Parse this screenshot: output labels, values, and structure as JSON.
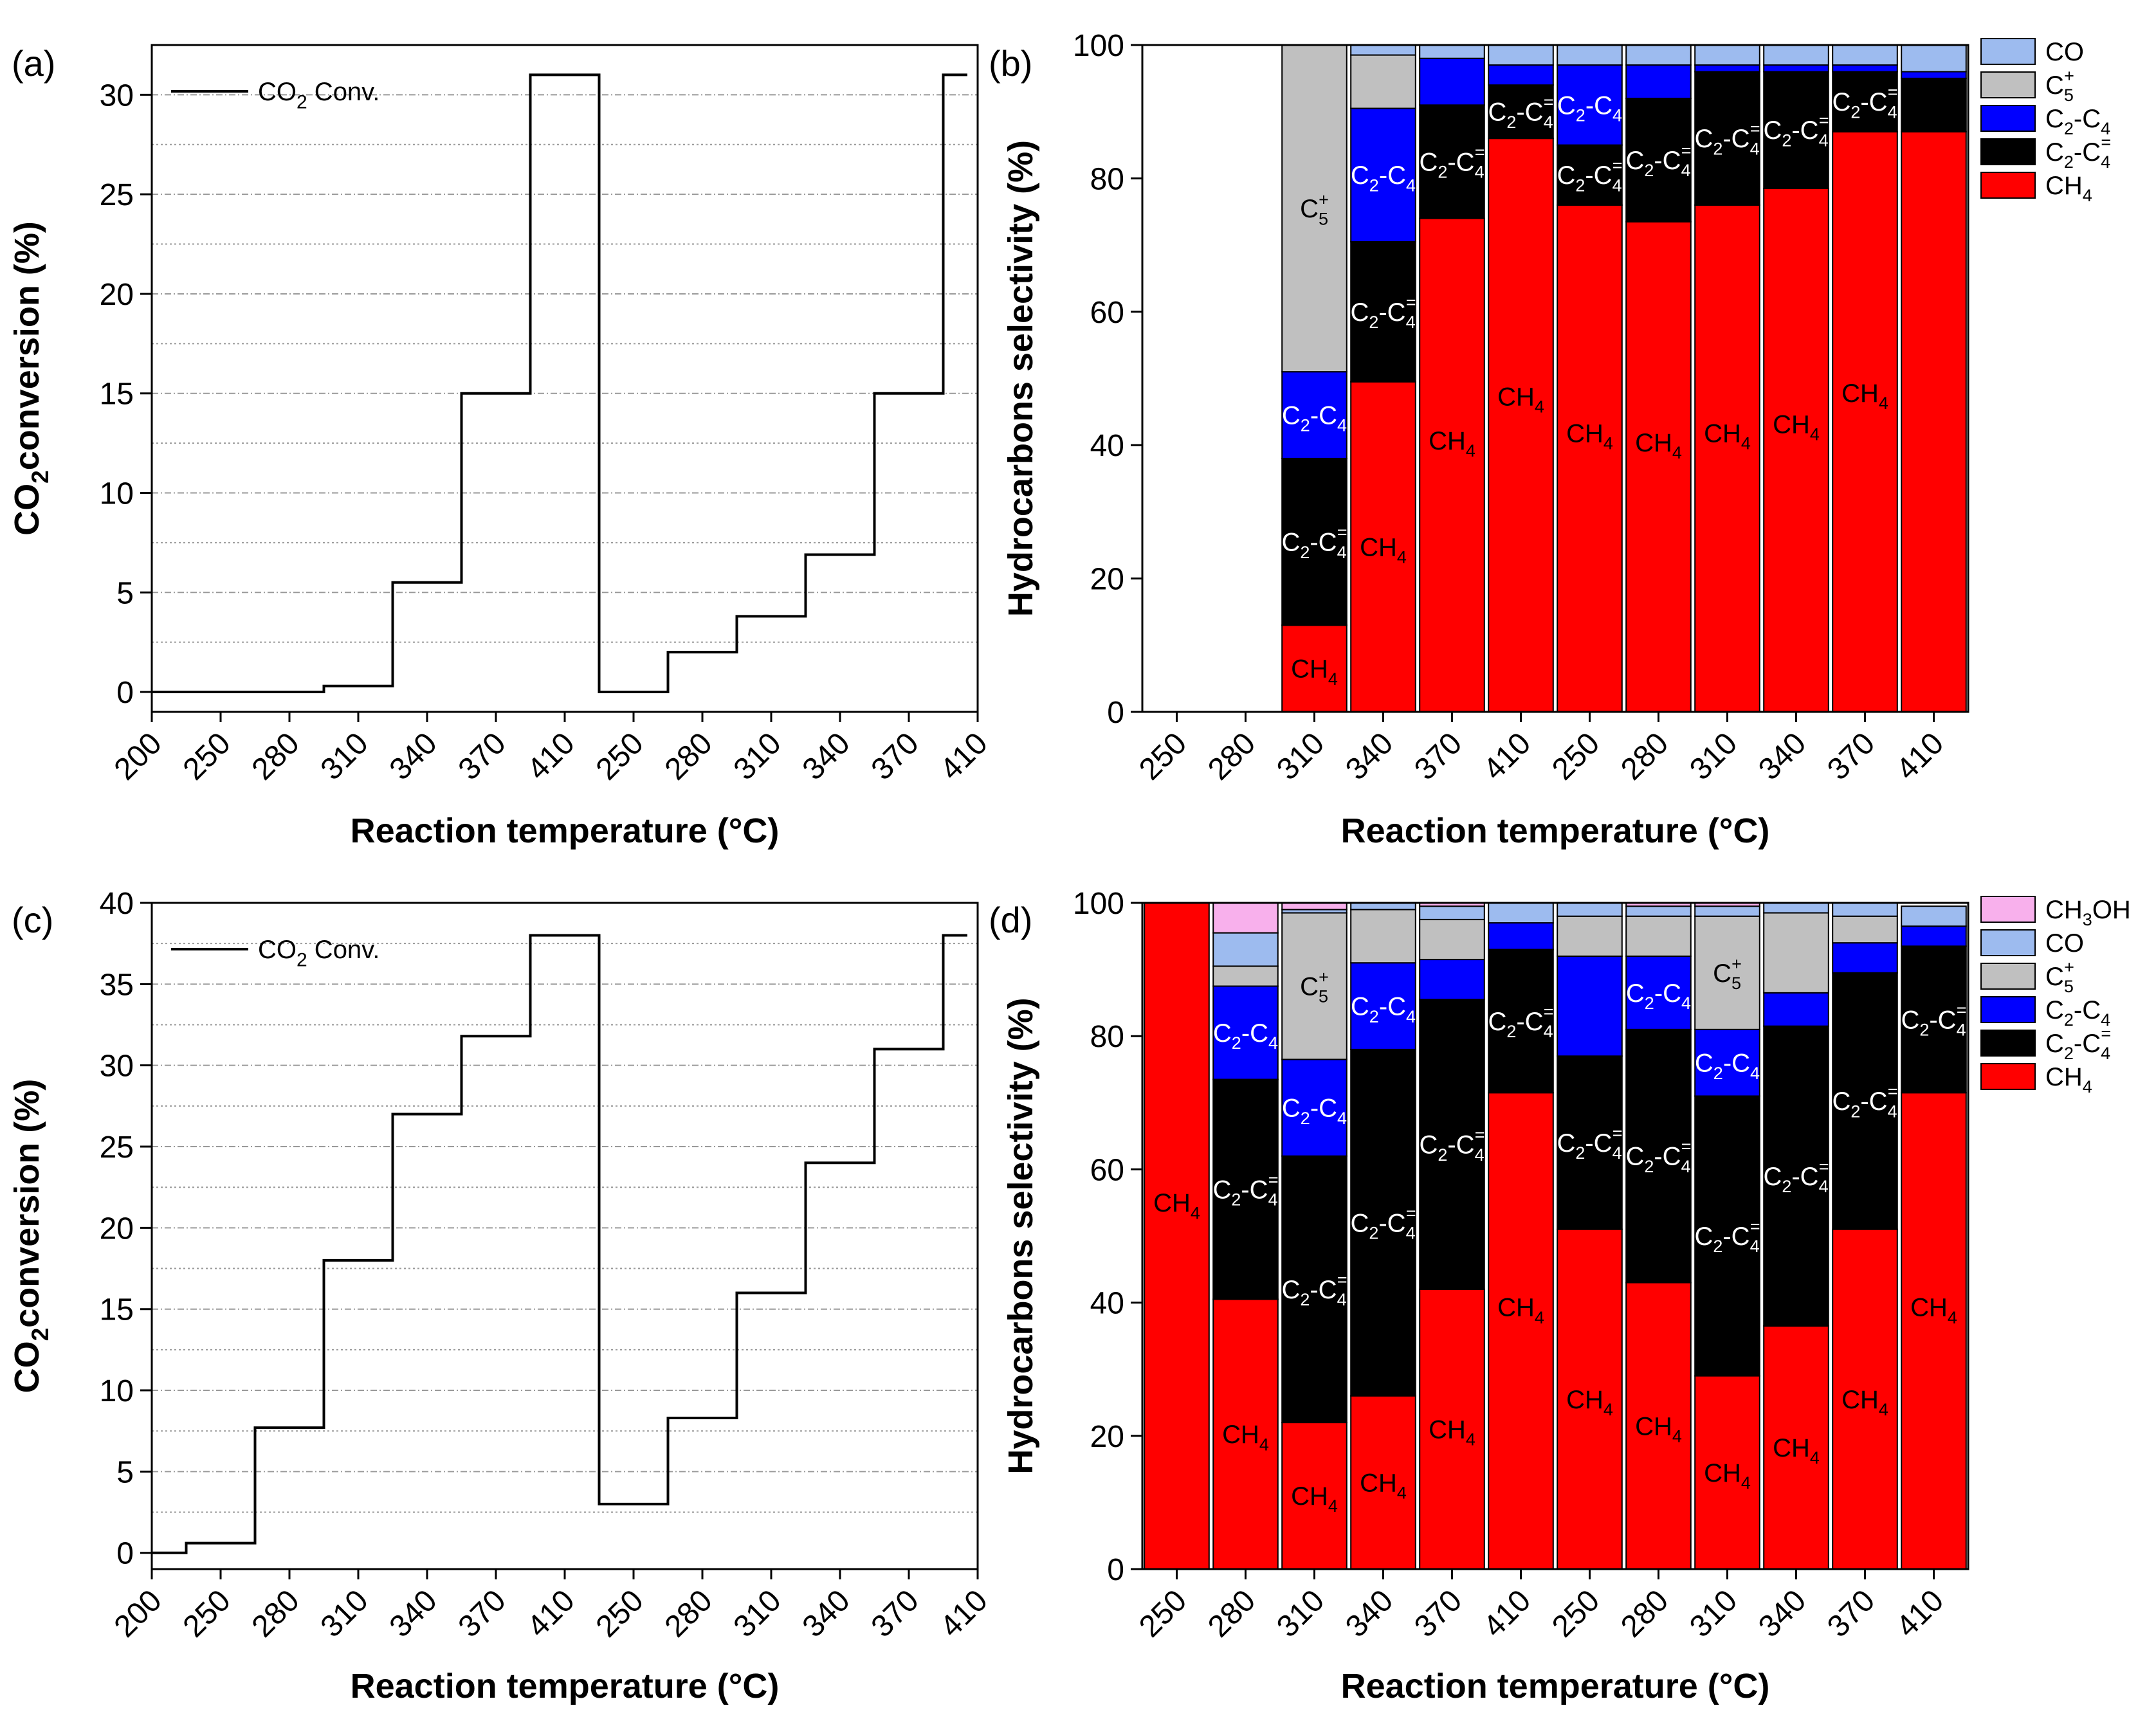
{
  "figure": {
    "panels": [
      "(a)",
      "(b)",
      "(c)",
      "(d)"
    ]
  },
  "chart_data": [
    {
      "id": "a",
      "panel": "(a)",
      "type": "line",
      "step": true,
      "title": "",
      "xlabel": "Reaction temperature (°C)",
      "ylabel": "CO2 conversion (%)",
      "ylabel_parts": [
        "CO",
        "2",
        "conversion (%)"
      ],
      "categories": [
        "200",
        "250",
        "280",
        "310",
        "340",
        "370",
        "410",
        "250",
        "280",
        "310",
        "340",
        "370",
        "410"
      ],
      "ylim": [
        -1,
        32.5
      ],
      "yticks": [
        0,
        5,
        10,
        15,
        20,
        25,
        30
      ],
      "gridlines": [
        2.5,
        5,
        7.5,
        10,
        12.5,
        15,
        17.5,
        20,
        22.5,
        25,
        27.5,
        30
      ],
      "legend": {
        "label_parts": [
          "CO",
          "2",
          " Conv."
        ],
        "position": "top-left"
      },
      "series": [
        {
          "name": "CO2 Conv.",
          "values": [
            0,
            0,
            0,
            0.3,
            5.5,
            15,
            31,
            0,
            2,
            3.8,
            6.9,
            15,
            31
          ]
        }
      ]
    },
    {
      "id": "b",
      "panel": "(b)",
      "type": "bar",
      "stacked": true,
      "xlabel": "Reaction temperature (°C)",
      "ylabel": "Hydrocarbons selectivity (%)",
      "categories": [
        "250",
        "280",
        "310",
        "340",
        "370",
        "410",
        "250",
        "280",
        "310",
        "340",
        "370",
        "410"
      ],
      "ylim": [
        0,
        100
      ],
      "yticks": [
        0,
        20,
        40,
        60,
        80,
        100
      ],
      "legend_order": [
        "CO",
        "C5+",
        "C2-C4",
        "C2-C4=",
        "CH4"
      ],
      "series": [
        {
          "name": "CH4",
          "color": "#ff0000",
          "values": [
            0,
            0,
            13,
            49.5,
            74,
            86,
            76,
            73.5,
            76,
            78.5,
            87,
            null
          ]
        },
        {
          "name": "C2-C4=",
          "color": "#000000",
          "values": [
            0,
            0,
            25,
            21,
            17,
            8,
            9,
            18.5,
            20,
            17.5,
            9,
            null
          ]
        },
        {
          "name": "C2-C4",
          "color": "#0000ff",
          "values": [
            0,
            0,
            13,
            20,
            7,
            3,
            12,
            5,
            1,
            1,
            1,
            null
          ]
        },
        {
          "name": "C5+",
          "color": "#c0c0c0",
          "values": [
            0,
            0,
            49,
            8,
            0,
            0,
            0,
            0,
            0,
            0,
            0,
            null
          ]
        },
        {
          "name": "CO",
          "color": "#9dbbef",
          "values": [
            0,
            0,
            0,
            1.5,
            2,
            3,
            3,
            3,
            3,
            3,
            3,
            null
          ]
        }
      ],
      "bar_labels": [
        {
          "bar": 2,
          "series": "CH4",
          "text": [
            "CH",
            "4",
            ""
          ],
          "white": false
        },
        {
          "bar": 2,
          "series": "C2-C4=",
          "text": [
            "C",
            "2",
            "-C",
            "4",
            "="
          ],
          "white": true
        },
        {
          "bar": 2,
          "series": "C2-C4",
          "text": [
            "C",
            "2",
            "-C",
            "4"
          ],
          "white": true
        },
        {
          "bar": 2,
          "series": "C5+",
          "text": [
            "C",
            "5",
            "+"
          ],
          "white": false
        },
        {
          "bar": 3,
          "series": "CH4",
          "text": [
            "CH",
            "4",
            ""
          ],
          "white": false
        },
        {
          "bar": 3,
          "series": "C2-C4=",
          "text": [
            "C",
            "2",
            "-C",
            "4",
            "="
          ],
          "white": true
        },
        {
          "bar": 3,
          "series": "C2-C4",
          "text": [
            "C",
            "2",
            "-C",
            "4"
          ],
          "white": true
        },
        {
          "bar": 4,
          "series": "CH4",
          "text": [
            "CH",
            "4",
            ""
          ],
          "white": false
        },
        {
          "bar": 4,
          "series": "C2-C4=",
          "text": [
            "C",
            "2",
            "-C",
            "4",
            "="
          ],
          "white": true
        },
        {
          "bar": 5,
          "series": "CH4",
          "text": [
            "CH",
            "4",
            ""
          ],
          "white": false
        },
        {
          "bar": 5,
          "series": "C2-C4=",
          "text": [
            "C",
            "2",
            "-C",
            "4",
            "="
          ],
          "white": true
        },
        {
          "bar": 6,
          "series": "CH4",
          "text": [
            "CH",
            "4",
            ""
          ],
          "white": false
        },
        {
          "bar": 6,
          "series": "C2-C4=",
          "text": [
            "C",
            "2",
            "-C",
            "4",
            "="
          ],
          "white": true
        },
        {
          "bar": 6,
          "series": "C2-C4",
          "text": [
            "C",
            "2",
            "-C",
            "4"
          ],
          "white": true
        },
        {
          "bar": 7,
          "series": "CH4",
          "text": [
            "CH",
            "4",
            ""
          ],
          "white": false
        },
        {
          "bar": 7,
          "series": "C2-C4=",
          "text": [
            "C",
            "2",
            "-C",
            "4",
            "="
          ],
          "white": true
        },
        {
          "bar": 8,
          "series": "CH4",
          "text": [
            "CH",
            "4",
            ""
          ],
          "white": false
        },
        {
          "bar": 8,
          "series": "C2-C4=",
          "text": [
            "C",
            "2",
            "-C",
            "4",
            "="
          ],
          "white": true
        },
        {
          "bar": 9,
          "series": "CH4",
          "text": [
            "CH",
            "4",
            ""
          ],
          "white": false
        },
        {
          "bar": 9,
          "series": "C2-C4=",
          "text": [
            "C",
            "2",
            "-C",
            "4",
            "="
          ],
          "white": true
        },
        {
          "bar": 10,
          "series": "CH4",
          "text": [
            "CH",
            "4",
            ""
          ],
          "white": false
        },
        {
          "bar": 10,
          "series": "C2-C4=",
          "text": [
            "C",
            "2",
            "-C",
            "4",
            "="
          ],
          "white": true
        }
      ]
    },
    {
      "id": "c",
      "panel": "(c)",
      "type": "line",
      "step": true,
      "title": "",
      "xlabel": "Reaction temperature (°C)",
      "ylabel": "CO2 conversion (%)",
      "ylabel_parts": [
        "CO",
        "2",
        "conversion (%)"
      ],
      "categories": [
        "200",
        "250",
        "280",
        "310",
        "340",
        "370",
        "410",
        "250",
        "280",
        "310",
        "340",
        "370",
        "410"
      ],
      "ylim": [
        -1,
        40
      ],
      "yticks": [
        0,
        5,
        10,
        15,
        20,
        25,
        30,
        35,
        40
      ],
      "gridlines": [
        2.5,
        5,
        7.5,
        10,
        12.5,
        15,
        17.5,
        20,
        22.5,
        25,
        27.5,
        30,
        32.5,
        35,
        37.5
      ],
      "legend": {
        "label_parts": [
          "CO",
          "2",
          " Conv."
        ],
        "position": "top-left"
      },
      "series": [
        {
          "name": "CO2 Conv.",
          "values": [
            0,
            0.6,
            7.7,
            18,
            27,
            31.8,
            38,
            3,
            8.3,
            16,
            24,
            31,
            38
          ]
        }
      ]
    },
    {
      "id": "d",
      "panel": "(d)",
      "type": "bar",
      "stacked": true,
      "xlabel": "Reaction temperature (°C)",
      "ylabel": "Hydrocarbons selectivity (%)",
      "categories": [
        "250",
        "280",
        "310",
        "340",
        "370",
        "410",
        "250",
        "280",
        "310",
        "340",
        "370",
        "410"
      ],
      "ylim": [
        0,
        100
      ],
      "yticks": [
        0,
        20,
        40,
        60,
        80,
        100
      ],
      "legend_order": [
        "CH3OH",
        "CO",
        "C5+",
        "C2-C4",
        "C2-C4=",
        "CH4"
      ],
      "series": [
        {
          "name": "CH4",
          "color": "#ff0000",
          "values": [
            100,
            40.5,
            22,
            26,
            42,
            71.5,
            51,
            43,
            29,
            36.5,
            51,
            71.5
          ]
        },
        {
          "name": "C2-C4=",
          "color": "#000000",
          "values": [
            0,
            33,
            40,
            52,
            43.5,
            21.5,
            26,
            38,
            42,
            45,
            38.5,
            22
          ]
        },
        {
          "name": "C2-C4",
          "color": "#0000ff",
          "values": [
            0,
            14,
            14.5,
            13,
            6,
            4,
            15,
            11,
            10,
            5,
            4.5,
            3
          ]
        },
        {
          "name": "C5+",
          "color": "#c0c0c0",
          "values": [
            0,
            3,
            22,
            8,
            6,
            0,
            6,
            6,
            17,
            12,
            4,
            0
          ]
        },
        {
          "name": "CO",
          "color": "#9dbbef",
          "values": [
            0,
            5,
            0.5,
            1,
            2,
            3,
            2,
            1.5,
            1.5,
            1.5,
            2,
            3
          ]
        },
        {
          "name": "CH3OH",
          "color": "#f8b0ec",
          "values": [
            0,
            4.5,
            1,
            0,
            0.5,
            0,
            0,
            0.5,
            0.5,
            0,
            0,
            0
          ]
        }
      ],
      "bar_labels": [
        {
          "bar": 0,
          "series": "CH4",
          "text": [
            "CH",
            "4",
            ""
          ],
          "white": false
        },
        {
          "bar": 1,
          "series": "CH4",
          "text": [
            "CH",
            "4",
            ""
          ],
          "white": false
        },
        {
          "bar": 1,
          "series": "C2-C4=",
          "text": [
            "C",
            "2",
            "-C",
            "4",
            "="
          ],
          "white": true
        },
        {
          "bar": 1,
          "series": "C2-C4",
          "text": [
            "C",
            "2",
            "-C",
            "4"
          ],
          "white": true
        },
        {
          "bar": 2,
          "series": "CH4",
          "text": [
            "CH",
            "4",
            ""
          ],
          "white": false
        },
        {
          "bar": 2,
          "series": "C2-C4=",
          "text": [
            "C",
            "2",
            "-C",
            "4",
            "="
          ],
          "white": true
        },
        {
          "bar": 2,
          "series": "C2-C4",
          "text": [
            "C",
            "2",
            "-C",
            "4"
          ],
          "white": true
        },
        {
          "bar": 2,
          "series": "C5+",
          "text": [
            "C",
            "5",
            "+"
          ],
          "white": false
        },
        {
          "bar": 3,
          "series": "CH4",
          "text": [
            "CH",
            "4",
            ""
          ],
          "white": false
        },
        {
          "bar": 3,
          "series": "C2-C4=",
          "text": [
            "C",
            "2",
            "-C",
            "4",
            "="
          ],
          "white": true
        },
        {
          "bar": 3,
          "series": "C2-C4",
          "text": [
            "C",
            "2",
            "-C",
            "4"
          ],
          "white": true
        },
        {
          "bar": 4,
          "series": "CH4",
          "text": [
            "CH",
            "4",
            ""
          ],
          "white": false
        },
        {
          "bar": 4,
          "series": "C2-C4=",
          "text": [
            "C",
            "2",
            "-C",
            "4",
            "="
          ],
          "white": true
        },
        {
          "bar": 5,
          "series": "CH4",
          "text": [
            "CH",
            "4",
            ""
          ],
          "white": false
        },
        {
          "bar": 5,
          "series": "C2-C4=",
          "text": [
            "C",
            "2",
            "-C",
            "4",
            "="
          ],
          "white": true
        },
        {
          "bar": 6,
          "series": "CH4",
          "text": [
            "CH",
            "4",
            ""
          ],
          "white": false
        },
        {
          "bar": 6,
          "series": "C2-C4=",
          "text": [
            "C",
            "2",
            "-C",
            "4",
            "="
          ],
          "white": true
        },
        {
          "bar": 7,
          "series": "CH4",
          "text": [
            "CH",
            "4",
            ""
          ],
          "white": false
        },
        {
          "bar": 7,
          "series": "C2-C4=",
          "text": [
            "C",
            "2",
            "-C",
            "4",
            "="
          ],
          "white": true
        },
        {
          "bar": 7,
          "series": "C2-C4",
          "text": [
            "C",
            "2",
            "-C",
            "4"
          ],
          "white": true
        },
        {
          "bar": 8,
          "series": "CH4",
          "text": [
            "CH",
            "4",
            ""
          ],
          "white": false
        },
        {
          "bar": 8,
          "series": "C2-C4=",
          "text": [
            "C",
            "2",
            "-C",
            "4",
            "="
          ],
          "white": true
        },
        {
          "bar": 8,
          "series": "C2-C4",
          "text": [
            "C",
            "2",
            "-C",
            "4"
          ],
          "white": true
        },
        {
          "bar": 8,
          "series": "C5+",
          "text": [
            "C",
            "5",
            "+"
          ],
          "white": false
        },
        {
          "bar": 9,
          "series": "CH4",
          "text": [
            "CH",
            "4",
            ""
          ],
          "white": false
        },
        {
          "bar": 9,
          "series": "C2-C4=",
          "text": [
            "C",
            "2",
            "-C",
            "4",
            "="
          ],
          "white": true
        },
        {
          "bar": 10,
          "series": "CH4",
          "text": [
            "CH",
            "4",
            ""
          ],
          "white": false
        },
        {
          "bar": 10,
          "series": "C2-C4=",
          "text": [
            "C",
            "2",
            "-C",
            "4",
            "="
          ],
          "white": true
        },
        {
          "bar": 11,
          "series": "CH4",
          "text": [
            "CH",
            "4",
            ""
          ],
          "white": false
        },
        {
          "bar": 11,
          "series": "C2-C4=",
          "text": [
            "C",
            "2",
            "-C",
            "4",
            "="
          ],
          "white": true
        }
      ]
    }
  ],
  "legend_labels": {
    "CH3OH": [
      "CH",
      "3",
      "OH"
    ],
    "CO": [
      "CO",
      "",
      ""
    ],
    "C5+": [
      "C",
      "5",
      "+"
    ],
    "C2-C4": [
      "C",
      "2",
      "-C",
      "4"
    ],
    "C2-C4=": [
      "C",
      "2",
      "-C",
      "4",
      "="
    ],
    "CH4": [
      "CH",
      "4",
      ""
    ]
  }
}
